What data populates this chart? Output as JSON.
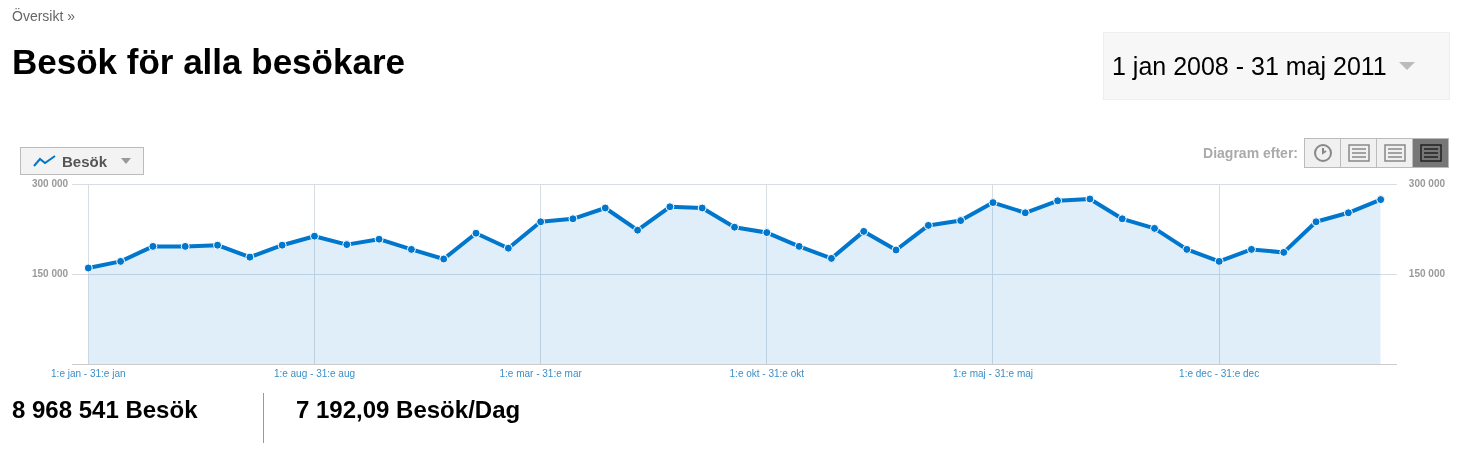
{
  "chart_data": {
    "type": "area",
    "title": "Besök för alla besökare",
    "annotations": [
      "Översikt »",
      "1 jan 2008 - 31 maj 2011",
      "Diagram efter:",
      "8 968 541 Besök",
      "7 192,09 Besök/Dag"
    ],
    "categories": [
      "1:e jan - 31:e jan",
      null,
      null,
      null,
      null,
      null,
      null,
      "1:e aug - 31:e aug",
      null,
      null,
      null,
      null,
      null,
      null,
      "1:e mar - 31:e mar",
      null,
      null,
      null,
      null,
      null,
      null,
      "1:e okt - 31:e okt",
      null,
      null,
      null,
      null,
      null,
      null,
      "1:e maj - 31:e maj",
      null,
      null,
      null,
      null,
      null,
      null,
      "1:e dec - 31:e dec",
      null,
      null,
      null,
      null,
      null
    ],
    "series": [
      {
        "name": "Besök",
        "color": "#0077cc",
        "values": [
          160000,
          171000,
          196000,
          196000,
          198000,
          178000,
          198000,
          213000,
          199000,
          208000,
          191000,
          175000,
          218000,
          193000,
          237000,
          242000,
          260000,
          223000,
          262000,
          260000,
          228000,
          219000,
          196000,
          176000,
          221000,
          190000,
          231000,
          239000,
          269000,
          252000,
          272000,
          275000,
          242000,
          226000,
          191000,
          171000,
          191000,
          186000,
          237000,
          252000,
          274000
        ]
      }
    ],
    "ylim": [
      0,
      300000
    ],
    "yticks": [
      {
        "value": 150000,
        "label": "150 000"
      },
      {
        "value": 300000,
        "label": "300 000"
      }
    ],
    "y2lim": [
      0,
      300000
    ],
    "y2ticks": [
      {
        "value": 150000,
        "label": "150 000"
      },
      {
        "value": 300000,
        "label": "300 000"
      }
    ],
    "grid": true,
    "legend": "top left",
    "marker": "circle",
    "line_style": "solid"
  }
}
